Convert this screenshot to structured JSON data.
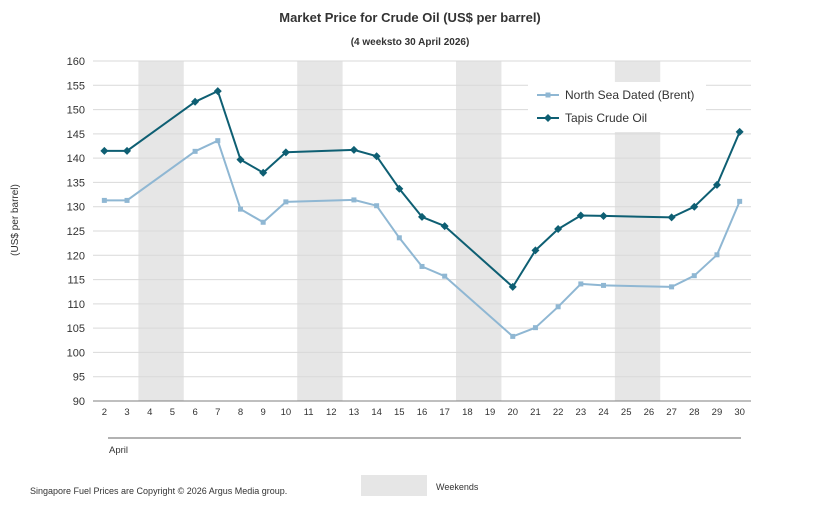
{
  "chart_data": {
    "type": "line",
    "title": "Market Price for Crude  Oil (US$ per barrel)",
    "subtitle": "(4 weeksto 30 April 2026)",
    "ylabel": "(US$ per barrel)",
    "month_label": "April",
    "ylim": [
      90,
      160
    ],
    "yticks": [
      90,
      95,
      100,
      105,
      110,
      115,
      120,
      125,
      130,
      135,
      140,
      145,
      150,
      155,
      160
    ],
    "x_days": [
      2,
      3,
      4,
      5,
      6,
      7,
      8,
      9,
      10,
      11,
      12,
      13,
      14,
      15,
      16,
      17,
      18,
      19,
      20,
      21,
      22,
      23,
      24,
      25,
      26,
      27,
      28,
      29,
      30
    ],
    "weekends": [
      [
        4,
        5
      ],
      [
        11,
        12
      ],
      [
        18,
        19
      ],
      [
        25,
        26
      ]
    ],
    "grid": true,
    "legend_position": "top-right",
    "series": [
      {
        "name": "North Sea Dated (Brent)",
        "color": "#8fb7d3",
        "marker": "square",
        "points": [
          [
            2,
            131.3
          ],
          [
            3,
            131.3
          ],
          [
            6,
            141.4
          ],
          [
            7,
            143.6
          ],
          [
            8,
            129.5
          ],
          [
            9,
            126.8
          ],
          [
            10,
            131.0
          ],
          [
            13,
            131.4
          ],
          [
            14,
            130.2
          ],
          [
            15,
            123.6
          ],
          [
            16,
            117.7
          ],
          [
            17,
            115.7
          ],
          [
            20,
            103.3
          ],
          [
            21,
            105.1
          ],
          [
            22,
            109.4
          ],
          [
            23,
            114.1
          ],
          [
            24,
            113.8
          ],
          [
            27,
            113.5
          ],
          [
            28,
            115.8
          ],
          [
            29,
            120.1
          ],
          [
            30,
            131.1
          ]
        ]
      },
      {
        "name": "Tapis Crude Oil",
        "color": "#0e5f73",
        "marker": "diamond",
        "points": [
          [
            2,
            141.5
          ],
          [
            3,
            141.5
          ],
          [
            6,
            151.6
          ],
          [
            7,
            153.8
          ],
          [
            8,
            139.7
          ],
          [
            9,
            137.0
          ],
          [
            10,
            141.2
          ],
          [
            13,
            141.7
          ],
          [
            14,
            140.4
          ],
          [
            15,
            133.7
          ],
          [
            16,
            127.9
          ],
          [
            17,
            126.0
          ],
          [
            20,
            113.5
          ],
          [
            21,
            121.0
          ],
          [
            22,
            125.4
          ],
          [
            23,
            128.2
          ],
          [
            24,
            128.1
          ],
          [
            27,
            127.8
          ],
          [
            28,
            130.0
          ],
          [
            29,
            134.5
          ],
          [
            30,
            145.4
          ]
        ]
      }
    ],
    "weekend_legend_label": "Weekends",
    "footer": "Singapore Fuel Prices are Copyright © 2026 Argus Media group."
  },
  "colors": {
    "weekend_band": "#e6e6e6",
    "grid": "#d9d9d9",
    "axis": "#7f7f7f"
  }
}
